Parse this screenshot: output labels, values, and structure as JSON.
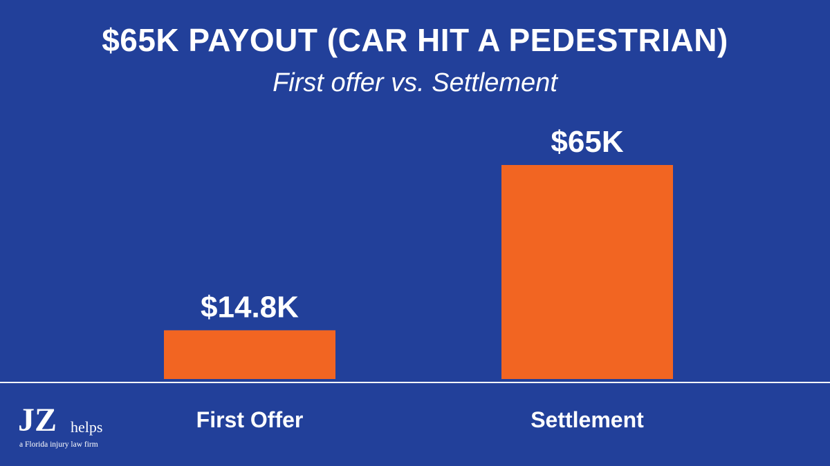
{
  "colors": {
    "background": "#22409a",
    "bar": "#f26522",
    "text": "#ffffff",
    "axis": "#ffffff"
  },
  "chart_data": {
    "type": "bar",
    "title": "$65K PAYOUT (CAR HIT A PEDESTRIAN)",
    "subtitle": "First offer vs. Settlement",
    "categories": [
      "First Offer",
      "Settlement"
    ],
    "values": [
      14.8,
      65
    ],
    "data_labels": [
      "$14.8K",
      "$65K"
    ],
    "ylim": [
      0,
      65
    ],
    "grid": false,
    "legend": "none"
  },
  "logo": {
    "mark": "JZ",
    "word": "helps",
    "tagline": "a Florida injury law firm"
  }
}
